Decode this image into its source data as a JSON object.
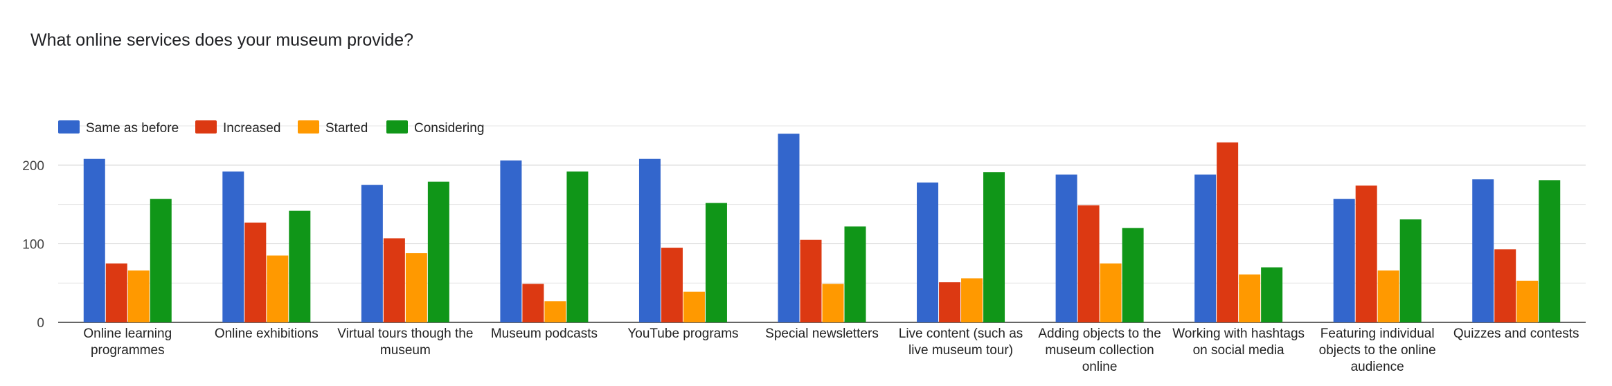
{
  "chart_data": {
    "type": "bar",
    "title": "What online services does your museum provide?",
    "categories": [
      [
        "Online learning",
        "programmes"
      ],
      [
        "Online exhibitions"
      ],
      [
        "Virtual tours though the",
        "museum"
      ],
      [
        "Museum podcasts"
      ],
      [
        "YouTube programs"
      ],
      [
        "Special newsletters"
      ],
      [
        "Live content (such as",
        "live museum tour)"
      ],
      [
        "Adding objects to the",
        "museum collection",
        "online"
      ],
      [
        "Working with hashtags",
        "on social media"
      ],
      [
        "Featuring individual",
        "objects to the online",
        "audience"
      ],
      [
        "Quizzes and contests"
      ]
    ],
    "series": [
      {
        "name": "Same as before",
        "color": "#3366cc",
        "values": [
          208,
          192,
          175,
          206,
          208,
          240,
          178,
          188,
          188,
          157,
          182
        ]
      },
      {
        "name": "Increased",
        "color": "#dc3912",
        "values": [
          75,
          127,
          107,
          49,
          95,
          105,
          51,
          149,
          229,
          174,
          93
        ]
      },
      {
        "name": "Started",
        "color": "#ff9900",
        "values": [
          66,
          85,
          88,
          27,
          39,
          49,
          56,
          75,
          61,
          66,
          53
        ]
      },
      {
        "name": "Considering",
        "color": "#109618",
        "values": [
          157,
          142,
          179,
          192,
          152,
          122,
          191,
          120,
          70,
          131,
          181
        ]
      }
    ],
    "yticks": [
      0,
      100,
      200
    ],
    "ylim": [
      0,
      250
    ],
    "gridlines": [
      0,
      50,
      100,
      150,
      200,
      250
    ],
    "legend_position": "top-left",
    "grid": true
  }
}
